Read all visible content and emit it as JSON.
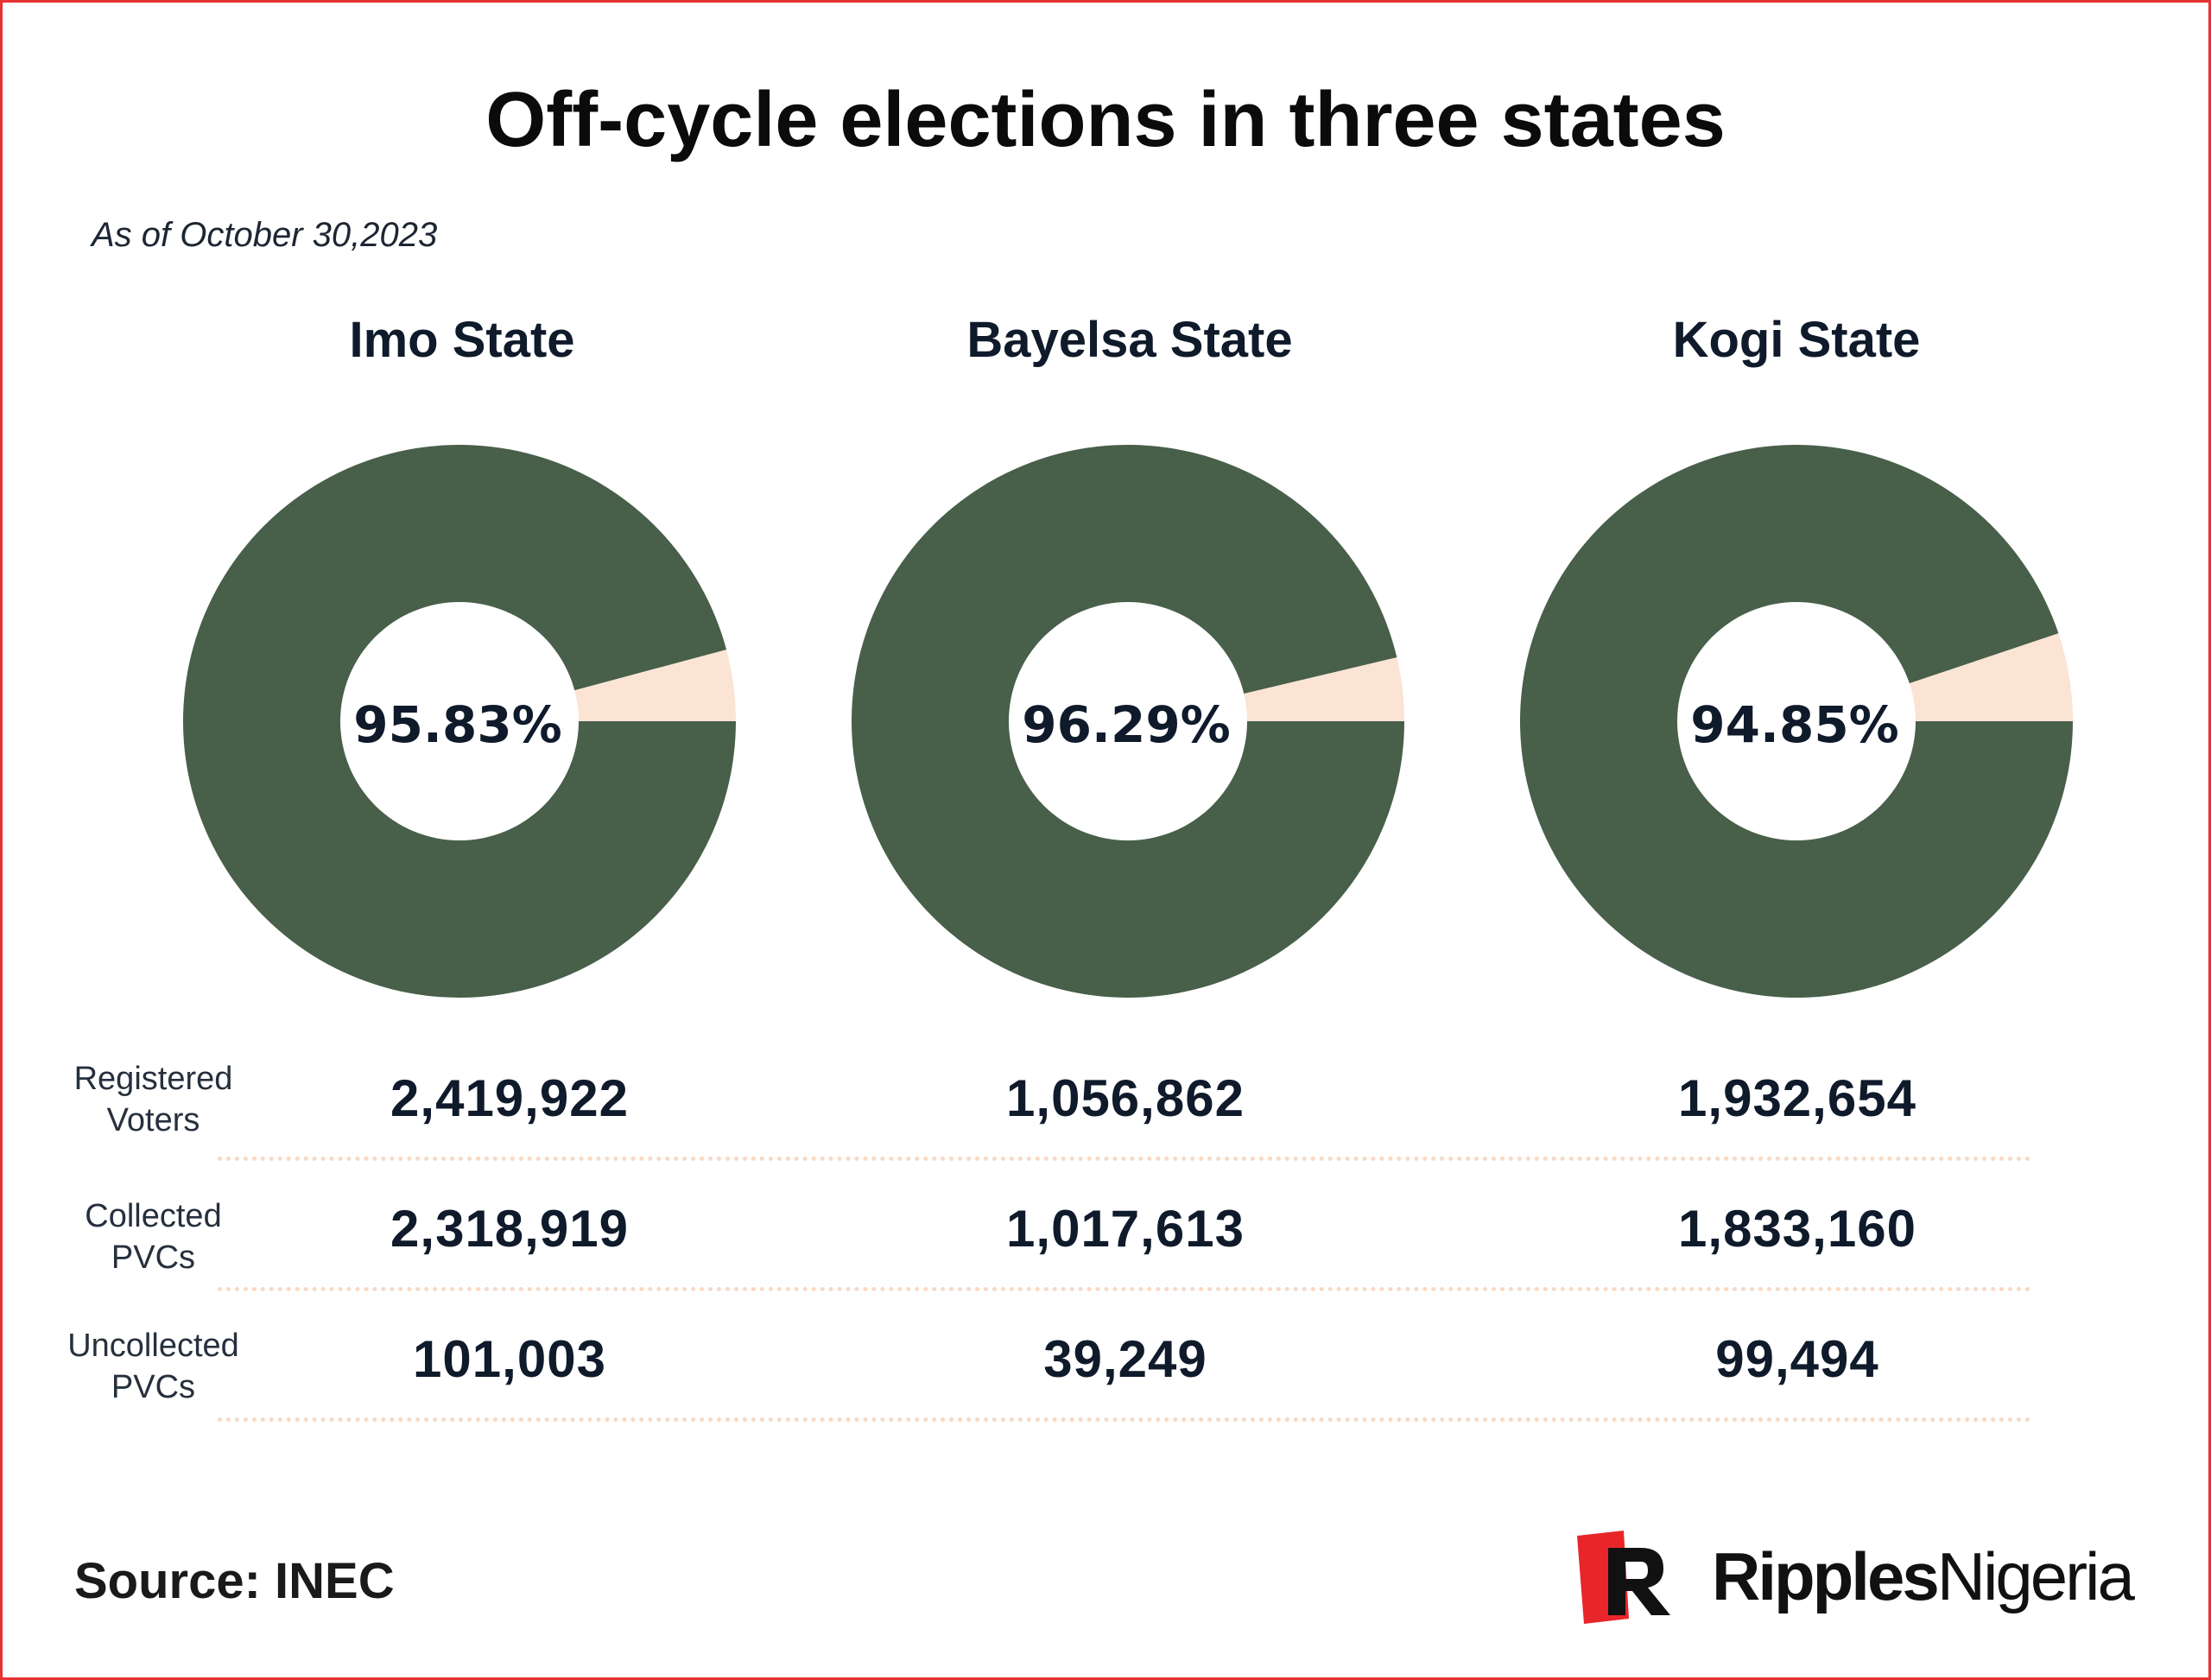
{
  "title": "Off-cycle elections in three states",
  "subtitle": "As of October 30,2023",
  "colors": {
    "collected": "#485f4a",
    "uncollected": "#fbe4d4",
    "hole": "#ffffff",
    "text": "#0f1a2b",
    "border": "#e63333",
    "brand_red": "#e8262a"
  },
  "states": [
    {
      "name": "Imo State",
      "percent_label": "95.83%"
    },
    {
      "name": "Bayelsa State",
      "percent_label": "96.29%"
    },
    {
      "name": "Kogi State",
      "percent_label": "94.85%"
    }
  ],
  "table": {
    "row_labels": [
      {
        "line1": "Registered",
        "line2": "Voters"
      },
      {
        "line1": "Collected",
        "line2": "PVCs"
      },
      {
        "line1": "Uncollected",
        "line2": "PVCs"
      }
    ],
    "values": [
      [
        "2,419,922",
        "1,056,862",
        "1,932,654"
      ],
      [
        "2,318,919",
        "1,017,613",
        "1,833,160"
      ],
      [
        "101,003",
        "39,249",
        "99,494"
      ]
    ]
  },
  "chart_data": [
    {
      "type": "pie",
      "title": "Imo State",
      "center_label": "95.83%",
      "slices": [
        {
          "name": "Collected PVCs",
          "value": 95.83
        },
        {
          "name": "Uncollected PVCs",
          "value": 4.17
        }
      ]
    },
    {
      "type": "pie",
      "title": "Bayelsa State",
      "center_label": "96.29%",
      "slices": [
        {
          "name": "Collected PVCs",
          "value": 96.29
        },
        {
          "name": "Uncollected PVCs",
          "value": 3.71
        }
      ]
    },
    {
      "type": "pie",
      "title": "Kogi State",
      "center_label": "94.85%",
      "slices": [
        {
          "name": "Collected PVCs",
          "value": 94.85
        },
        {
          "name": "Uncollected PVCs",
          "value": 5.15
        }
      ]
    }
  ],
  "source": "Source: INEC",
  "brand": {
    "part1": "Ripples",
    "part2": "Nigeria",
    "logo_icon": "ripples-nigeria-logo-icon"
  }
}
